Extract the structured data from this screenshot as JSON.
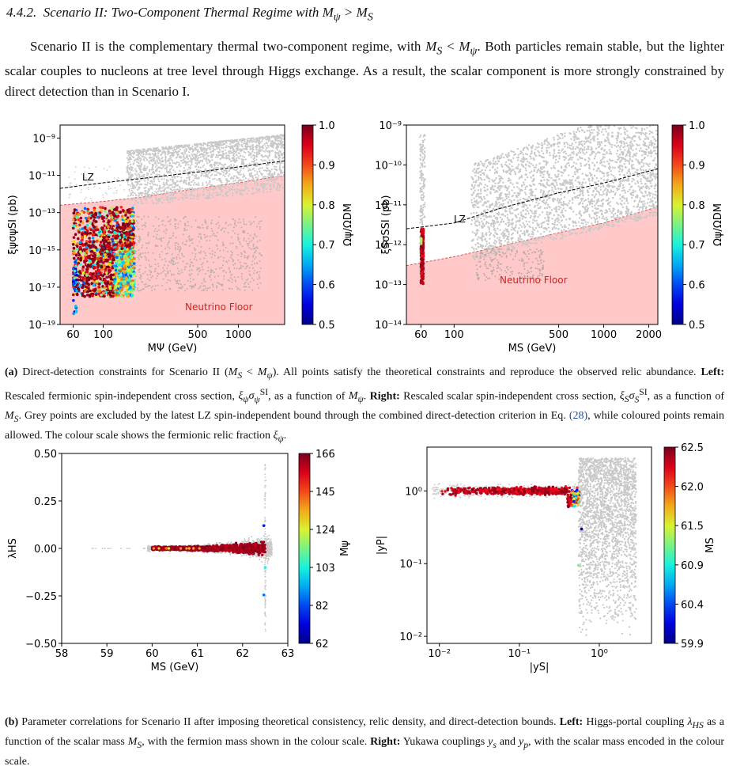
{
  "section": {
    "heading": "4.4.2.  Scenario II: Two-Component Thermal Regime with Mψ > MS",
    "paragraph": "Scenario II is the complementary thermal two-component regime, with MS < Mψ. Both particles remain stable, but the lighter scalar couples to nucleons at tree level through Higgs exchange. As a result, the scalar component is more strongly constrained by direct detection than in Scenario I."
  },
  "caption_a": {
    "tag": "(a)",
    "lead": "Direct-detection constraints for Scenario II (MS < Mψ). All points satisfy the theoretical constraints and reproduce the observed relic abundance.",
    "left_label": "Left:",
    "left_text": "Rescaled fermionic spin-independent cross section, ξψσψSI, as a function of Mψ.",
    "right_label": "Right:",
    "right_text": "Rescaled scalar spin-independent cross section, ξSσSSI, as a function of MS. Grey points are excluded by the latest LZ spin-independent bound through the combined direct-detection criterion in Eq. ",
    "eq_ref": "(28)",
    "tail": ", while coloured points remain allowed. The colour scale shows the fermionic relic fraction ξψ."
  },
  "caption_b": {
    "tag": "(b)",
    "lead": "Parameter correlations for Scenario II after imposing theoretical consistency, relic density, and direct-detection bounds.",
    "left_label": "Left:",
    "left_text": "Higgs-portal coupling λHS as a function of the scalar mass MS, with the fermion mass shown in the colour scale.",
    "right_label": "Right:",
    "right_text": "Yukawa couplings ys and yp, with the scalar mass encoded in the colour scale."
  },
  "chart_data": [
    {
      "type": "scatter",
      "xlabel": "MΨ (GeV)",
      "ylabel": "ξψσψSI (pb)",
      "x_scale": "log",
      "y_scale": "log",
      "xlim": [
        48,
        2200
      ],
      "ylim": [
        1e-19,
        5e-09
      ],
      "x_ticks": [
        60,
        100,
        500,
        1000
      ],
      "x_tick_labels": [
        "60",
        "100",
        "500",
        "1000"
      ],
      "y_ticks": [
        1e-19,
        1e-17,
        1e-15,
        1e-13,
        1e-11,
        1e-09
      ],
      "y_tick_labels": [
        "10⁻¹⁹",
        "10⁻¹⁷",
        "10⁻¹⁵",
        "10⁻¹³",
        "10⁻¹¹",
        "10⁻⁹"
      ],
      "lz_label": "LZ",
      "lz_line": {
        "x": [
          48,
          100,
          200,
          500,
          1000,
          2200
        ],
        "y": [
          2e-12,
          4e-12,
          7e-12,
          1.5e-11,
          2.8e-11,
          6e-11
        ]
      },
      "floor_label": "Neutrino Floor",
      "floor_line": {
        "x": [
          48,
          100,
          200,
          500,
          1000,
          2200
        ],
        "y": [
          2.5e-13,
          4e-13,
          7e-13,
          2e-12,
          4e-12,
          1e-11
        ]
      },
      "colorbar": {
        "label": "Ωψ/ΩDM",
        "min": 0.5,
        "max": 1.0,
        "ticks": [
          "1.0",
          "0.9",
          "0.8",
          "0.7",
          "0.6",
          "0.5"
        ]
      },
      "legend": "none",
      "grid": false
    },
    {
      "type": "scatter",
      "xlabel": "MS (GeV)",
      "ylabel": "ξSσSSI (pb)",
      "x_scale": "log",
      "y_scale": "log",
      "xlim": [
        48,
        2300
      ],
      "ylim": [
        1e-14,
        1e-09
      ],
      "x_ticks": [
        60,
        100,
        500,
        1000,
        2000
      ],
      "x_tick_labels": [
        "60",
        "100",
        "500",
        "1000",
        "2000"
      ],
      "y_ticks": [
        1e-14,
        1e-13,
        1e-12,
        1e-11,
        1e-10,
        1e-09
      ],
      "y_tick_labels": [
        "10⁻¹⁴",
        "10⁻¹³",
        "10⁻¹²",
        "10⁻¹¹",
        "10⁻¹⁰",
        "10⁻⁹"
      ],
      "lz_label": "LZ",
      "lz_line": {
        "x": [
          48,
          100,
          200,
          500,
          1000,
          2300
        ],
        "y": [
          2.5e-12,
          3.5e-12,
          8e-12,
          2e-11,
          3.5e-11,
          8e-11
        ]
      },
      "floor_label": "Neutrino Floor",
      "floor_line": {
        "x": [
          48,
          100,
          200,
          500,
          1000,
          2300
        ],
        "y": [
          3e-13,
          5e-13,
          9e-13,
          2e-12,
          3.5e-12,
          9e-12
        ]
      },
      "colorbar": {
        "label": "Ωψ/ΩDM",
        "min": 0.5,
        "max": 1.0,
        "ticks": [
          "1.0",
          "0.9",
          "0.8",
          "0.7",
          "0.6",
          "0.5"
        ]
      },
      "legend": "none",
      "grid": false
    },
    {
      "type": "scatter",
      "xlabel": "MS (GeV)",
      "ylabel": "λHS",
      "x_scale": "linear",
      "y_scale": "linear",
      "xlim": [
        58,
        63
      ],
      "ylim": [
        -0.5,
        0.5
      ],
      "x_ticks": [
        58,
        59,
        60,
        61,
        62,
        63
      ],
      "x_tick_labels": [
        "58",
        "59",
        "60",
        "61",
        "62",
        "63"
      ],
      "y_ticks": [
        -0.5,
        -0.25,
        0,
        0.25,
        0.5
      ],
      "y_tick_labels": [
        "−0.50",
        "−0.25",
        "0.00",
        "0.25",
        "0.50"
      ],
      "colorbar": {
        "label": "Mψ",
        "min": 62,
        "max": 166,
        "ticks": [
          "166",
          "145",
          "124",
          "103",
          "82",
          "62"
        ]
      },
      "legend": "none",
      "grid": false
    },
    {
      "type": "scatter",
      "xlabel": "|yS|",
      "ylabel": "|yP|",
      "x_scale": "log",
      "y_scale": "log",
      "xlim": [
        0.007,
        4.5
      ],
      "ylim": [
        0.008,
        4
      ],
      "x_ticks": [
        0.01,
        0.1,
        1
      ],
      "x_tick_labels": [
        "10⁻²",
        "10⁻¹",
        "10⁰"
      ],
      "y_ticks": [
        0.01,
        0.1,
        1
      ],
      "y_tick_labels": [
        "10⁻²",
        "10⁻¹",
        "10⁰"
      ],
      "colorbar": {
        "label": "MS",
        "min": 59.9,
        "max": 62.5,
        "ticks": [
          "62.5",
          "62.0",
          "61.5",
          "60.9",
          "60.4",
          "59.9"
        ]
      },
      "legend": "none",
      "grid": false
    }
  ]
}
